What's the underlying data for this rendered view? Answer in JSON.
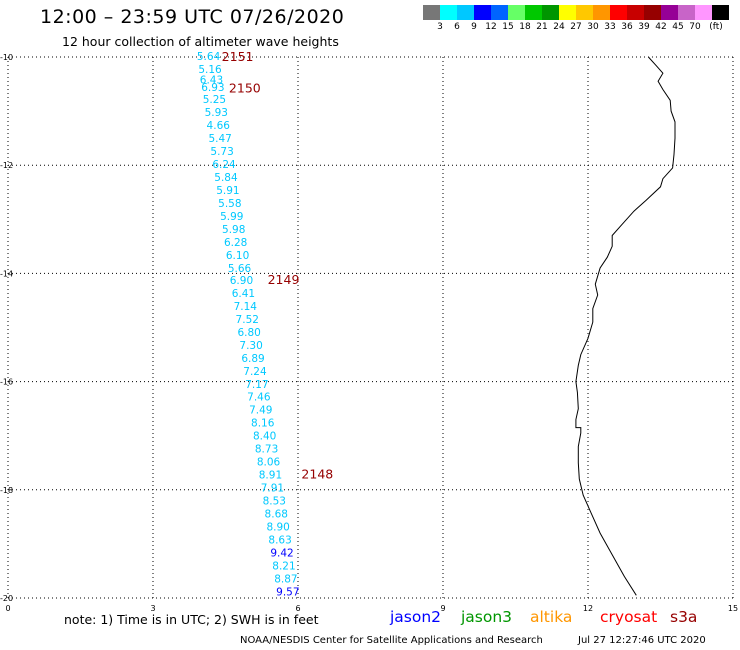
{
  "header": {
    "title": "12:00 – 23:59 UTC 07/26/2020",
    "subtitle": "12 hour collection of altimeter wave heights"
  },
  "colorbar": {
    "colors": [
      "#777777",
      "#00ffff",
      "#00c8ff",
      "#0000ff",
      "#0064ff",
      "#66ff66",
      "#00c800",
      "#009600",
      "#ffff00",
      "#ffc800",
      "#ff9600",
      "#ff0000",
      "#c80000",
      "#960000",
      "#960096",
      "#c864c8",
      "#ff96ff",
      "#000000"
    ],
    "labels": [
      "3",
      "6",
      "9",
      "12",
      "15",
      "18",
      "21",
      "24",
      "27",
      "30",
      "33",
      "36",
      "39",
      "42",
      "45",
      "70",
      "(ft)"
    ]
  },
  "chart_data": {
    "type": "scatter",
    "xlim": [
      0,
      15
    ],
    "ylim": [
      -20,
      -10
    ],
    "xticks": [
      "0",
      "3",
      "6",
      "9",
      "12",
      "15"
    ],
    "yticks": [
      "-10",
      "-12",
      "-14",
      "-16",
      "-18",
      "-20"
    ],
    "grid": true,
    "swh_points": [
      {
        "lon": 4.15,
        "lat": -9.98,
        "v": "5.64",
        "c": "#00c8ff"
      },
      {
        "lon": 4.18,
        "lat": -10.22,
        "v": "5.16",
        "c": "#00c8ff"
      },
      {
        "lon": 4.21,
        "lat": -10.42,
        "v": "6.43",
        "c": "#00c8ff"
      },
      {
        "lon": 4.24,
        "lat": -10.55,
        "v": "6.93",
        "c": "#00c8ff"
      },
      {
        "lon": 4.27,
        "lat": -10.78,
        "v": "5.25",
        "c": "#00c8ff"
      },
      {
        "lon": 4.31,
        "lat": -11.02,
        "v": "5.93",
        "c": "#00c8ff"
      },
      {
        "lon": 4.35,
        "lat": -11.26,
        "v": "4.66",
        "c": "#00c8ff"
      },
      {
        "lon": 4.39,
        "lat": -11.5,
        "v": "5.47",
        "c": "#00c8ff"
      },
      {
        "lon": 4.43,
        "lat": -11.74,
        "v": "5.73",
        "c": "#00c8ff"
      },
      {
        "lon": 4.47,
        "lat": -11.98,
        "v": "6.24",
        "c": "#00c8ff"
      },
      {
        "lon": 4.51,
        "lat": -12.22,
        "v": "5.84",
        "c": "#00c8ff"
      },
      {
        "lon": 4.55,
        "lat": -12.46,
        "v": "5.91",
        "c": "#00c8ff"
      },
      {
        "lon": 4.59,
        "lat": -12.7,
        "v": "5.58",
        "c": "#00c8ff"
      },
      {
        "lon": 4.63,
        "lat": -12.94,
        "v": "5.99",
        "c": "#00c8ff"
      },
      {
        "lon": 4.67,
        "lat": -13.18,
        "v": "5.98",
        "c": "#00c8ff"
      },
      {
        "lon": 4.71,
        "lat": -13.42,
        "v": "6.28",
        "c": "#00c8ff"
      },
      {
        "lon": 4.75,
        "lat": -13.66,
        "v": "6.10",
        "c": "#00c8ff"
      },
      {
        "lon": 4.79,
        "lat": -13.9,
        "v": "5.66",
        "c": "#00c8ff"
      },
      {
        "lon": 4.83,
        "lat": -14.12,
        "v": "6.90",
        "c": "#00c8ff"
      },
      {
        "lon": 4.87,
        "lat": -14.36,
        "v": "6.41",
        "c": "#00c8ff"
      },
      {
        "lon": 4.91,
        "lat": -14.6,
        "v": "7.14",
        "c": "#00c8ff"
      },
      {
        "lon": 4.95,
        "lat": -14.84,
        "v": "7.52",
        "c": "#00c8ff"
      },
      {
        "lon": 4.99,
        "lat": -15.08,
        "v": "6.80",
        "c": "#00c8ff"
      },
      {
        "lon": 5.03,
        "lat": -15.32,
        "v": "7.30",
        "c": "#00c8ff"
      },
      {
        "lon": 5.07,
        "lat": -15.56,
        "v": "6.89",
        "c": "#00c8ff"
      },
      {
        "lon": 5.11,
        "lat": -15.8,
        "v": "7.24",
        "c": "#00c8ff"
      },
      {
        "lon": 5.15,
        "lat": -16.04,
        "v": "7.17",
        "c": "#00c8ff"
      },
      {
        "lon": 5.19,
        "lat": -16.28,
        "v": "7.46",
        "c": "#00c8ff"
      },
      {
        "lon": 5.23,
        "lat": -16.52,
        "v": "7.49",
        "c": "#00c8ff"
      },
      {
        "lon": 5.27,
        "lat": -16.76,
        "v": "8.16",
        "c": "#00c8ff"
      },
      {
        "lon": 5.31,
        "lat": -17.0,
        "v": "8.40",
        "c": "#00c8ff"
      },
      {
        "lon": 5.35,
        "lat": -17.24,
        "v": "8.73",
        "c": "#00c8ff"
      },
      {
        "lon": 5.39,
        "lat": -17.48,
        "v": "8.06",
        "c": "#00c8ff"
      },
      {
        "lon": 5.43,
        "lat": -17.72,
        "v": "8.91",
        "c": "#00c8ff"
      },
      {
        "lon": 5.47,
        "lat": -17.96,
        "v": "7.91",
        "c": "#00c8ff"
      },
      {
        "lon": 5.51,
        "lat": -18.2,
        "v": "8.53",
        "c": "#00c8ff"
      },
      {
        "lon": 5.55,
        "lat": -18.44,
        "v": "8.68",
        "c": "#00c8ff"
      },
      {
        "lon": 5.59,
        "lat": -18.68,
        "v": "8.90",
        "c": "#00c8ff"
      },
      {
        "lon": 5.63,
        "lat": -18.92,
        "v": "8.63",
        "c": "#00c8ff"
      },
      {
        "lon": 5.67,
        "lat": -19.16,
        "v": "9.42",
        "c": "#0000ff"
      },
      {
        "lon": 5.71,
        "lat": -19.4,
        "v": "8.21",
        "c": "#00c8ff"
      },
      {
        "lon": 5.75,
        "lat": -19.64,
        "v": "8.87",
        "c": "#00c8ff"
      },
      {
        "lon": 5.79,
        "lat": -19.88,
        "v": "9.57",
        "c": "#0000ff"
      }
    ],
    "track_labels": [
      {
        "lon": 4.75,
        "lat": -10.0,
        "text": "2151",
        "c": "#960000"
      },
      {
        "lon": 4.9,
        "lat": -10.58,
        "text": "2150",
        "c": "#960000"
      },
      {
        "lon": 5.7,
        "lat": -14.12,
        "text": "2149",
        "c": "#960000"
      },
      {
        "lon": 6.4,
        "lat": -17.72,
        "text": "2148",
        "c": "#960000"
      }
    ],
    "coastline": [
      [
        13.25,
        -10.0
      ],
      [
        13.4,
        -10.15
      ],
      [
        13.55,
        -10.3
      ],
      [
        13.45,
        -10.45
      ],
      [
        13.55,
        -10.6
      ],
      [
        13.7,
        -10.8
      ],
      [
        13.72,
        -11.0
      ],
      [
        13.8,
        -11.2
      ],
      [
        13.8,
        -11.5
      ],
      [
        13.78,
        -11.8
      ],
      [
        13.75,
        -12.05
      ],
      [
        13.55,
        -12.25
      ],
      [
        13.5,
        -12.4
      ],
      [
        13.2,
        -12.65
      ],
      [
        12.95,
        -12.85
      ],
      [
        12.7,
        -13.1
      ],
      [
        12.5,
        -13.3
      ],
      [
        12.5,
        -13.5
      ],
      [
        12.4,
        -13.7
      ],
      [
        12.25,
        -13.9
      ],
      [
        12.15,
        -14.2
      ],
      [
        12.2,
        -14.4
      ],
      [
        12.1,
        -14.65
      ],
      [
        12.1,
        -14.9
      ],
      [
        12.0,
        -15.2
      ],
      [
        11.85,
        -15.5
      ],
      [
        11.8,
        -15.7
      ],
      [
        11.75,
        -16.0
      ],
      [
        11.78,
        -16.2
      ],
      [
        11.8,
        -16.5
      ],
      [
        11.75,
        -16.7
      ],
      [
        11.75,
        -16.85
      ],
      [
        11.85,
        -16.85
      ],
      [
        11.85,
        -16.95
      ],
      [
        11.8,
        -17.2
      ],
      [
        11.8,
        -17.5
      ],
      [
        11.82,
        -17.8
      ],
      [
        11.9,
        -18.1
      ],
      [
        12.05,
        -18.4
      ],
      [
        12.25,
        -18.8
      ],
      [
        12.5,
        -19.2
      ],
      [
        12.75,
        -19.6
      ],
      [
        13.0,
        -19.95
      ]
    ]
  },
  "footer": {
    "note": "note:  1) Time is in UTC;  2) SWH is in feet",
    "satellites": [
      {
        "label": "jason2",
        "color": "#0000ff"
      },
      {
        "label": "jason3",
        "color": "#009600"
      },
      {
        "label": "altika",
        "color": "#ff9600"
      },
      {
        "label": "cryosat",
        "color": "#ff0000"
      },
      {
        "label": "s3a",
        "color": "#960000"
      }
    ],
    "credit": "NOAA/NESDIS Center for Satellite Applications and Research",
    "date": "Jul 27 12:27:46 UTC 2020"
  }
}
